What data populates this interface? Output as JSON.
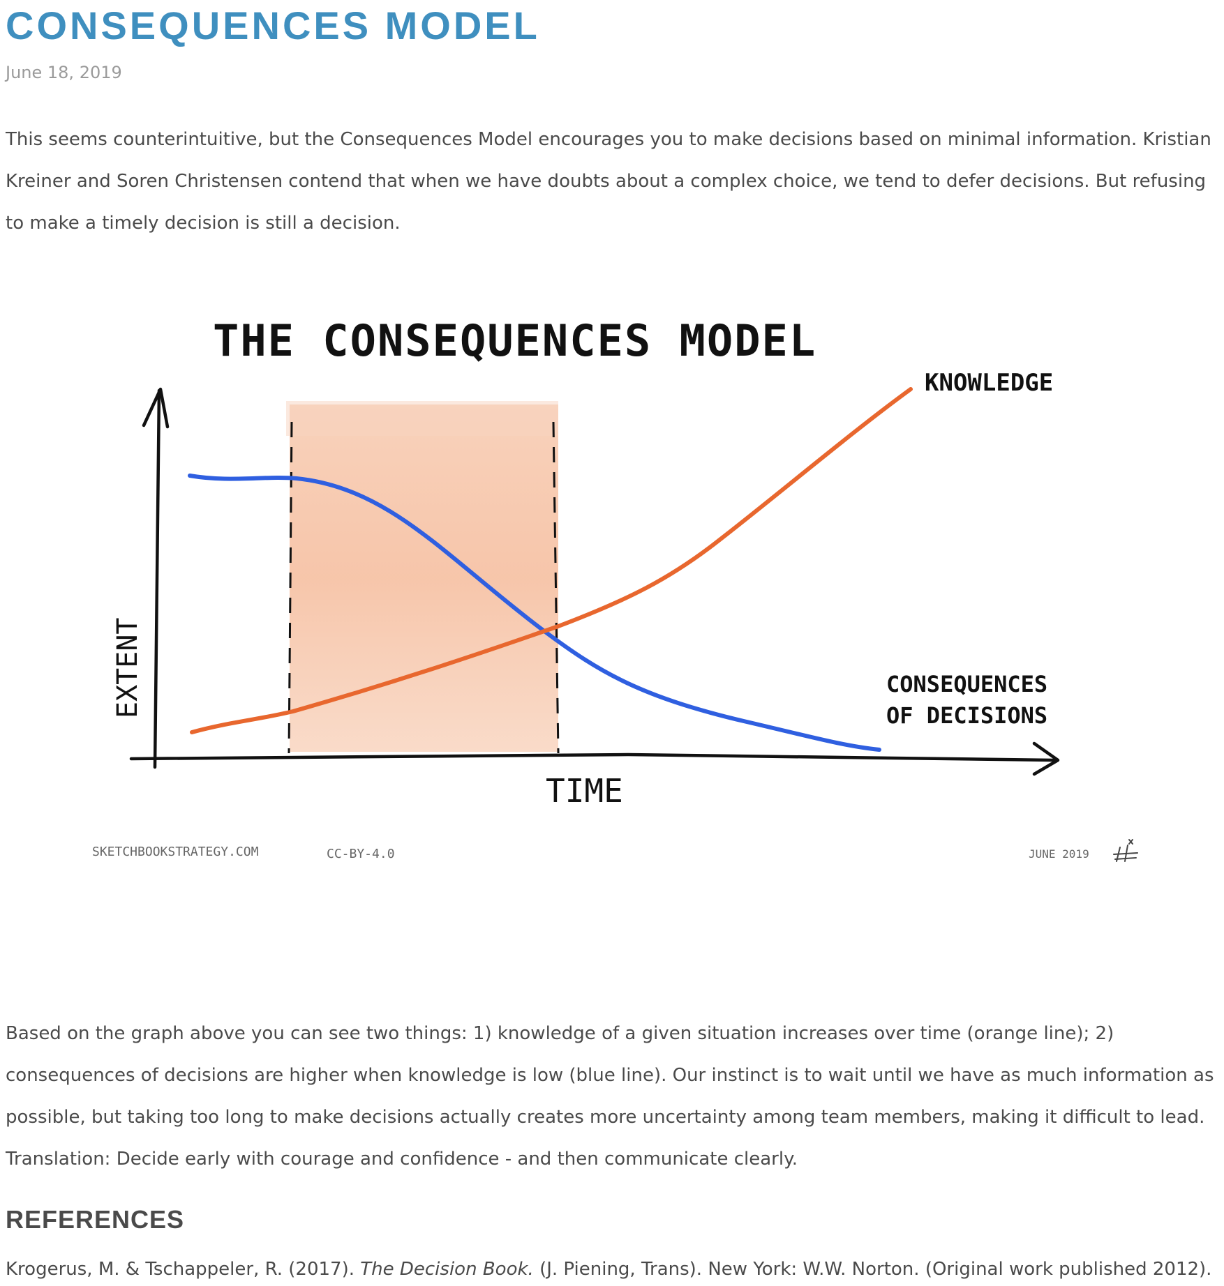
{
  "post": {
    "title": "CONSEQUENCES MODEL",
    "date": "June 18, 2019",
    "intro": "This seems counterintuitive, but the Consequences Model encourages you to make decisions based on minimal information. Kristian Kreiner and Soren Christensen contend that when we have doubts about a complex choice, we tend to defer decisions. But refusing to make a timely decision is still a decision.",
    "body": "Based on the graph above you can see two things: 1) knowledge of a given situation increases over time (orange line); 2) consequences of decisions are higher when knowledge is low (blue line). Our instinct is to wait until we have as much information as possible, but taking too long to make decisions actually creates more uncertainty among team members, making it difficult to lead. Translation: Decide early with courage and confidence - and then communicate clearly.",
    "references_heading": "REFERENCES",
    "reference": {
      "before": "Krogerus, M. & Tschappeler, R. (2017). ",
      "title": "The Decision Book.",
      "after": " (J. Piening, Trans). New York: W.W. Norton. (Original work published 2012)."
    }
  },
  "figure": {
    "title": "THE CONSEQUENCES MODEL",
    "y_axis_label": "EXTENT",
    "x_axis_label": "TIME",
    "knowledge_label": "KNOWLEDGE",
    "consequences_label_line1": "CONSEQUENCES",
    "consequences_label_line2": "OF DECISIONS",
    "footer_site": "SKETCHBOOKSTRATEGY.COM",
    "footer_license": "CC-BY-4.0",
    "footer_date": "JUNE 2019",
    "colors": {
      "knowledge_line": "#e8672e",
      "consequences_line": "#2f5fe0",
      "window_fill": "#f4b08c",
      "title_color": "#3f8fbf"
    }
  }
}
